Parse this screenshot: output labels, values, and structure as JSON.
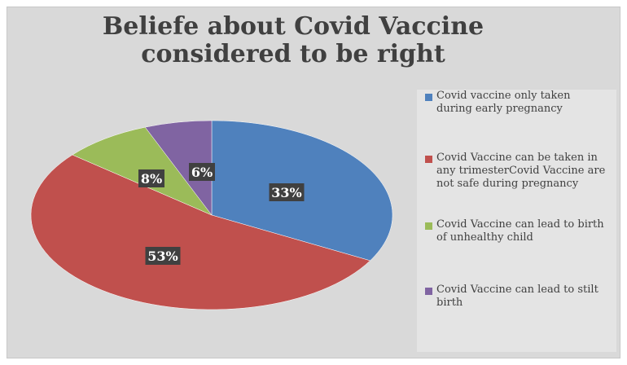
{
  "chart_data": {
    "type": "pie",
    "title": "Beliefe about Covid Vaccine considered to be right",
    "legend_position": "right",
    "slices": [
      {
        "label": "Covid vaccine only taken during early pregnancy",
        "value": 33,
        "display": "33%",
        "color": "#4f81bd"
      },
      {
        "label": "Covid Vaccine can be taken in any trimesterCovid Vaccine are not safe during pregnancy",
        "value": 53,
        "display": "53%",
        "color": "#c0504d"
      },
      {
        "label": "Covid Vaccine can lead to birth of unhealthy child",
        "value": 8,
        "display": "8%",
        "color": "#9bbb59"
      },
      {
        "label": "Covid Vaccine can lead to stilt birth",
        "value": 6,
        "display": "6%",
        "color": "#8064a2"
      }
    ]
  }
}
